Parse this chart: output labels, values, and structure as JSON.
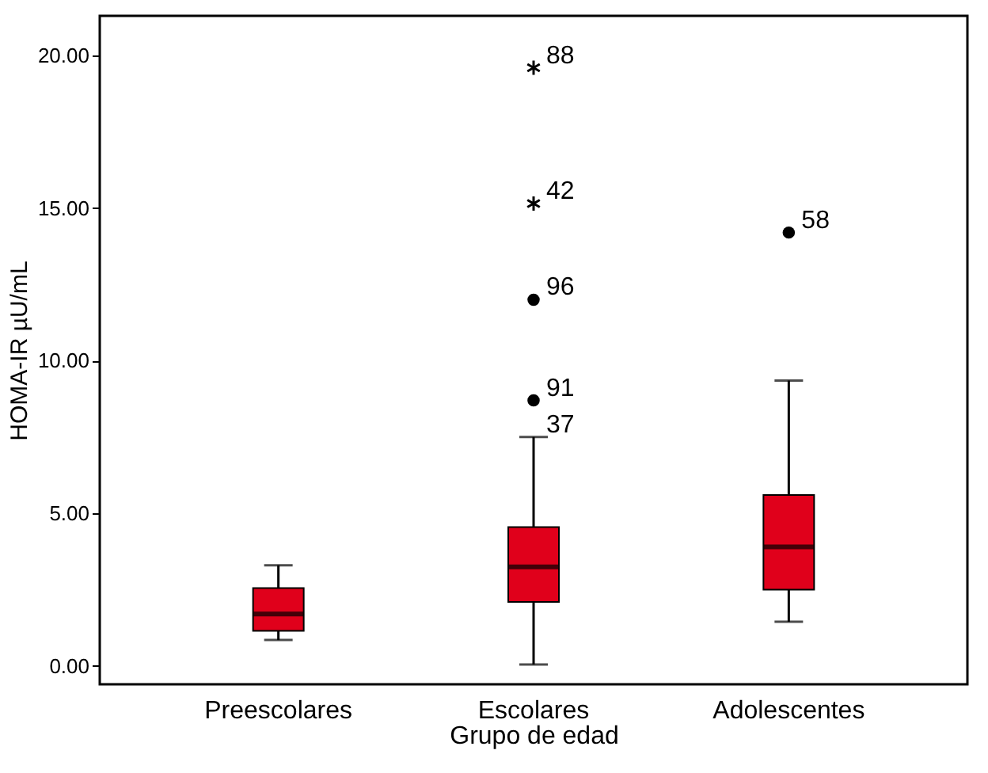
{
  "chart_data": {
    "type": "box",
    "xlabel": "Grupo de edad",
    "ylabel": "HOMA-IR µU/mL",
    "categories": [
      "Preescolares",
      "Escolares",
      "Adolescentes"
    ],
    "boxes": [
      {
        "low": 0.85,
        "q1": 1.15,
        "median": 1.7,
        "q3": 2.55,
        "high": 3.3
      },
      {
        "low": 0.05,
        "q1": 2.1,
        "median": 3.25,
        "q3": 4.55,
        "high": 7.5
      },
      {
        "low": 1.45,
        "q1": 2.5,
        "median": 3.9,
        "q3": 5.6,
        "high": 9.35
      }
    ],
    "color": "#e0001b",
    "series": [
      {
        "type": "scatter",
        "marker": "circle",
        "color": "#000000",
        "x": [
          "Escolares",
          "Escolares",
          "Adolescentes"
        ],
        "values": [
          12.0,
          8.7,
          14.2
        ]
      },
      {
        "type": "scatter",
        "marker": "cross",
        "color": "#000000",
        "x": [
          "Escolares",
          "Escolares"
        ],
        "values": [
          19.6,
          15.15
        ]
      }
    ],
    "ylim": [
      -0.6,
      21.3
    ],
    "yticks": [
      {
        "value": 0,
        "label": "0.00"
      },
      {
        "value": 5,
        "label": "5.00"
      },
      {
        "value": 10,
        "label": "10.00"
      },
      {
        "value": 15,
        "label": "15.00"
      },
      {
        "value": 20,
        "label": "20.00"
      }
    ],
    "grid": false,
    "annotations": [
      {
        "text": "88",
        "x": "Escolares",
        "y": 19.6
      },
      {
        "text": "42",
        "x": "Escolares",
        "y": 15.15
      },
      {
        "text": "96",
        "x": "Escolares",
        "y": 12.0
      },
      {
        "text": "91",
        "x": "Escolares",
        "y": 8.7
      },
      {
        "text": "37",
        "x": "Escolares",
        "y": 7.5
      },
      {
        "text": "58",
        "x": "Adolescentes",
        "y": 14.2
      }
    ]
  }
}
